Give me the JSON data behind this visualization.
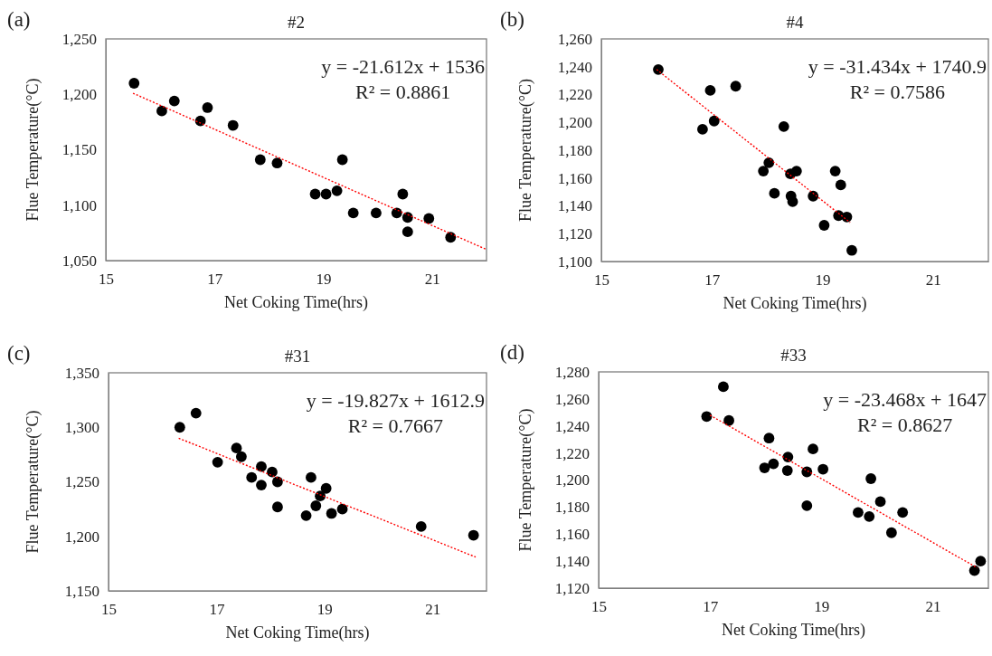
{
  "chart_data": [
    {
      "type": "scatter",
      "title": "#2",
      "xlabel": "Net Coking Time(hrs)",
      "ylabel": "Flue Temperature(°C)",
      "xlim": [
        15,
        22
      ],
      "xticks": [
        15,
        17,
        19,
        21
      ],
      "ylim": [
        1050,
        1250
      ],
      "yticks": [
        {
          "value": 1050,
          "label": "1,050"
        },
        {
          "value": 1100,
          "label": "1,100"
        },
        {
          "value": 1150,
          "label": "1,150"
        },
        {
          "value": 1200,
          "label": "1,200"
        },
        {
          "value": 1250,
          "label": "1,250"
        }
      ],
      "grid": false,
      "annotations": [
        "(a)",
        "y = -21.612x + 1536",
        "R² = 0.8861"
      ],
      "series": [
        {
          "marker": "circle",
          "color": "#000000",
          "x": [
            15.52,
            16.03,
            16.26,
            16.74,
            16.87,
            17.34,
            17.84,
            18.15,
            18.85,
            19.05,
            19.25,
            19.35,
            19.55,
            19.97,
            20.35,
            20.46,
            20.55,
            20.55,
            20.94,
            21.34
          ],
          "values": [
            1210,
            1185,
            1194,
            1176,
            1188,
            1172,
            1141,
            1138,
            1110,
            1110,
            1113,
            1141,
            1093,
            1093,
            1093,
            1110,
            1089,
            1076,
            1088,
            1071
          ]
        },
        {
          "type": "line",
          "marker": "none",
          "color": "#ff0000",
          "line_style": "dotted",
          "x": [
            15.5,
            22
          ],
          "values": [
            1201,
            1060
          ]
        }
      ]
    },
    {
      "type": "scatter",
      "title": "#4",
      "xlabel": "Net Coking Time(hrs)",
      "ylabel": "Flue Temperature(°C)",
      "xlim": [
        15,
        22
      ],
      "xticks": [
        15,
        17,
        19,
        21
      ],
      "ylim": [
        1100,
        1260
      ],
      "yticks": [
        {
          "value": 1100,
          "label": "1,100"
        },
        {
          "value": 1120,
          "label": "1,120"
        },
        {
          "value": 1140,
          "label": "1,140"
        },
        {
          "value": 1160,
          "label": "1,160"
        },
        {
          "value": 1180,
          "label": "1,180"
        },
        {
          "value": 1200,
          "label": "1,200"
        },
        {
          "value": 1220,
          "label": "1,220"
        },
        {
          "value": 1240,
          "label": "1,240"
        },
        {
          "value": 1260,
          "label": "1,260"
        }
      ],
      "grid": false,
      "annotations": [
        "(b)",
        "y = -31.434x + 1740.9",
        "R² = 0.7586"
      ],
      "series": [
        {
          "marker": "circle",
          "color": "#000000",
          "x": [
            16.03,
            16.97,
            17.43,
            16.83,
            17.04,
            18.3,
            18.03,
            17.93,
            18.13,
            18.42,
            18.53,
            18.43,
            18.46,
            18.83,
            19.03,
            19.23,
            19.33,
            19.29,
            19.44,
            19.53
          ],
          "values": [
            1238,
            1223,
            1226,
            1195,
            1201,
            1197,
            1171,
            1165,
            1149,
            1163,
            1165,
            1147,
            1143,
            1147,
            1126,
            1165,
            1155,
            1133,
            1132,
            1108
          ]
        },
        {
          "type": "line",
          "marker": "none",
          "color": "#ff0000",
          "line_style": "dotted",
          "x": [
            16,
            19.5
          ],
          "values": [
            1238,
            1128
          ]
        }
      ]
    },
    {
      "type": "scatter",
      "title": "#31",
      "xlabel": "Net Coking Time(hrs)",
      "ylabel": "Flue Temperature(°C)",
      "xlim": [
        15,
        22
      ],
      "xticks": [
        15,
        17,
        19,
        21
      ],
      "ylim": [
        1150,
        1350
      ],
      "yticks": [
        {
          "value": 1150,
          "label": "1,150"
        },
        {
          "value": 1200,
          "label": "1,200"
        },
        {
          "value": 1250,
          "label": "1,250"
        },
        {
          "value": 1300,
          "label": "1,300"
        },
        {
          "value": 1350,
          "label": "1,350"
        }
      ],
      "grid": false,
      "annotations": [
        "(c)",
        "y = -19.827x + 1612.9",
        "R² = 0.7667"
      ],
      "series": [
        {
          "marker": "circle",
          "color": "#000000",
          "x": [
            16.32,
            16.62,
            17.02,
            17.37,
            17.46,
            17.65,
            17.83,
            17.83,
            18.03,
            18.13,
            18.13,
            18.66,
            18.75,
            18.84,
            18.92,
            19.03,
            19.13,
            19.33,
            20.79,
            21.76
          ],
          "values": [
            1300,
            1313,
            1268,
            1281,
            1273,
            1254,
            1264,
            1247,
            1259,
            1250,
            1227,
            1219,
            1254,
            1228,
            1237,
            1244,
            1221,
            1225,
            1209,
            1201
          ]
        },
        {
          "type": "line",
          "marker": "none",
          "color": "#ff0000",
          "line_style": "dotted",
          "x": [
            16.3,
            21.8
          ],
          "values": [
            1290,
            1181
          ]
        }
      ]
    },
    {
      "type": "scatter",
      "title": "#33",
      "xlabel": "Net Coking Time(hrs)",
      "ylabel": "Flue Temperature(°C)",
      "xlim": [
        15,
        22
      ],
      "xticks": [
        15,
        17,
        19,
        21
      ],
      "ylim": [
        1120,
        1280
      ],
      "yticks": [
        {
          "value": 1120,
          "label": "1,120"
        },
        {
          "value": 1140,
          "label": "1,140"
        },
        {
          "value": 1160,
          "label": "1,160"
        },
        {
          "value": 1180,
          "label": "1,180"
        },
        {
          "value": 1200,
          "label": "1,200"
        },
        {
          "value": 1220,
          "label": "1,220"
        },
        {
          "value": 1240,
          "label": "1,240"
        },
        {
          "value": 1260,
          "label": "1,260"
        },
        {
          "value": 1280,
          "label": "1,280"
        }
      ],
      "grid": false,
      "annotations": [
        "(d)",
        "y = -23.468x + 1647",
        "R² = 0.8627"
      ],
      "series": [
        {
          "marker": "circle",
          "color": "#000000",
          "x": [
            16.94,
            17.24,
            17.34,
            18.06,
            17.98,
            18.14,
            18.4,
            18.39,
            18.74,
            18.85,
            19.03,
            18.74,
            19.66,
            19.86,
            19.89,
            20.06,
            20.26,
            20.46,
            21.75,
            21.86
          ],
          "values": [
            1247,
            1269,
            1244,
            1231,
            1209,
            1212,
            1217,
            1207,
            1206,
            1223,
            1208,
            1181,
            1176,
            1173,
            1201,
            1184,
            1161,
            1176,
            1133,
            1140
          ]
        },
        {
          "type": "line",
          "marker": "none",
          "color": "#ff0000",
          "line_style": "dotted",
          "x": [
            17,
            21.8
          ],
          "values": [
            1248,
            1135
          ]
        }
      ]
    }
  ]
}
